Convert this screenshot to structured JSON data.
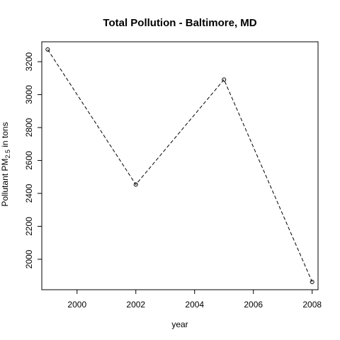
{
  "chart_data": {
    "type": "line",
    "title": "Total Pollution - Baltimore, MD",
    "xlabel": "year",
    "ylabel_main": "Pollutant PM",
    "ylabel_sub": "2.5",
    "ylabel_tail": " in tons",
    "x": [
      1999,
      2002,
      2005,
      2008
    ],
    "y": [
      3274.18,
      2453.92,
      3091.35,
      1862.28
    ],
    "xlim": [
      1998.8,
      2008.2
    ],
    "ylim": [
      1815,
      3321
    ],
    "xticks": [
      2000,
      2002,
      2004,
      2006,
      2008
    ],
    "yticks": [
      2000,
      2200,
      2400,
      2600,
      2800,
      3000,
      3200
    ],
    "line_style": "dashed",
    "marker": "open-circle",
    "grid": false,
    "legend": "none",
    "colors": {
      "line": "#000000",
      "axis": "#000000",
      "background": "#ffffff"
    }
  }
}
